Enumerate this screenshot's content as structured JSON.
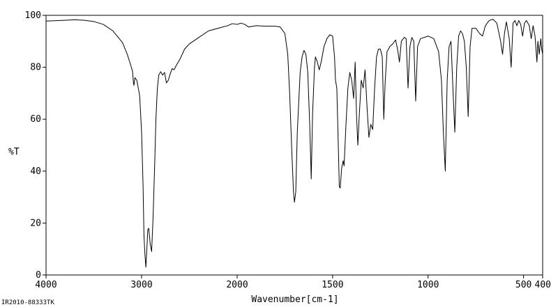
{
  "chart_data": {
    "type": "line",
    "title": "",
    "xlabel": "Wavenumber[cm-1]",
    "ylabel": "%T",
    "xlim": [
      4000,
      400
    ],
    "ylim": [
      0,
      100
    ],
    "x_reversed": true,
    "grid": false,
    "x_ticks": [
      4000,
      3000,
      2000,
      1500,
      1000,
      500,
      400
    ],
    "x_tick_labels": [
      "4000",
      "3000",
      "2000",
      "1500",
      "1000",
      "500",
      "400"
    ],
    "y_ticks": [
      0,
      20,
      40,
      60,
      80,
      100
    ],
    "y_tick_labels": [
      "0",
      "20",
      "40",
      "60",
      "80",
      "100"
    ],
    "series": [
      {
        "color": "#000000",
        "points": [
          [
            4000,
            97.8
          ],
          [
            3800,
            98.1
          ],
          [
            3700,
            98.3
          ],
          [
            3600,
            98.1
          ],
          [
            3500,
            97.6
          ],
          [
            3400,
            96.5
          ],
          [
            3300,
            94.0
          ],
          [
            3200,
            89.5
          ],
          [
            3150,
            85.0
          ],
          [
            3120,
            81.5
          ],
          [
            3095,
            78.5
          ],
          [
            3085,
            74.0
          ],
          [
            3080,
            73.0
          ],
          [
            3070,
            76.0
          ],
          [
            3050,
            75.0
          ],
          [
            3020,
            69.0
          ],
          [
            3000,
            55.0
          ],
          [
            2985,
            35.0
          ],
          [
            2975,
            15.0
          ],
          [
            2965,
            8.0
          ],
          [
            2955,
            3.0
          ],
          [
            2945,
            10.0
          ],
          [
            2935,
            17.5
          ],
          [
            2925,
            18.0
          ],
          [
            2910,
            12.0
          ],
          [
            2895,
            9.0
          ],
          [
            2880,
            22.0
          ],
          [
            2865,
            40.0
          ],
          [
            2850,
            60.0
          ],
          [
            2835,
            72.0
          ],
          [
            2820,
            77.0
          ],
          [
            2800,
            78.3
          ],
          [
            2780,
            77.0
          ],
          [
            2760,
            78.0
          ],
          [
            2740,
            74.0
          ],
          [
            2720,
            75.0
          ],
          [
            2700,
            77.5
          ],
          [
            2680,
            79.5
          ],
          [
            2660,
            79.0
          ],
          [
            2640,
            80.5
          ],
          [
            2600,
            83.0
          ],
          [
            2550,
            87.0
          ],
          [
            2500,
            89.0
          ],
          [
            2400,
            91.5
          ],
          [
            2300,
            94.0
          ],
          [
            2200,
            95.0
          ],
          [
            2100,
            96.0
          ],
          [
            2050,
            96.8
          ],
          [
            2000,
            96.5
          ],
          [
            1980,
            97.0
          ],
          [
            1960,
            96.5
          ],
          [
            1940,
            95.5
          ],
          [
            1900,
            96.0
          ],
          [
            1850,
            95.8
          ],
          [
            1800,
            95.8
          ],
          [
            1775,
            95.5
          ],
          [
            1750,
            93.0
          ],
          [
            1735,
            85.0
          ],
          [
            1725,
            70.0
          ],
          [
            1715,
            50.0
          ],
          [
            1705,
            32.0
          ],
          [
            1700,
            28.0
          ],
          [
            1693,
            32.0
          ],
          [
            1685,
            55.0
          ],
          [
            1670,
            78.0
          ],
          [
            1660,
            84.0
          ],
          [
            1650,
            86.5
          ],
          [
            1640,
            85.0
          ],
          [
            1630,
            78.0
          ],
          [
            1620,
            58.0
          ],
          [
            1612,
            37.0
          ],
          [
            1605,
            62.0
          ],
          [
            1595,
            80.0
          ],
          [
            1590,
            84.0
          ],
          [
            1580,
            82.0
          ],
          [
            1570,
            79.0
          ],
          [
            1560,
            82.0
          ],
          [
            1545,
            88.0
          ],
          [
            1530,
            91.0
          ],
          [
            1515,
            92.5
          ],
          [
            1500,
            92.0
          ],
          [
            1495,
            88.0
          ],
          [
            1490,
            84.0
          ],
          [
            1485,
            75.0
          ],
          [
            1478,
            72.0
          ],
          [
            1472,
            55.0
          ],
          [
            1465,
            34.0
          ],
          [
            1460,
            33.5
          ],
          [
            1453,
            41.0
          ],
          [
            1445,
            44.0
          ],
          [
            1440,
            42.0
          ],
          [
            1430,
            58.0
          ],
          [
            1420,
            72.0
          ],
          [
            1410,
            78.0
          ],
          [
            1400,
            75.0
          ],
          [
            1390,
            68.0
          ],
          [
            1382,
            82.0
          ],
          [
            1375,
            62.0
          ],
          [
            1368,
            50.0
          ],
          [
            1360,
            62.0
          ],
          [
            1350,
            75.0
          ],
          [
            1340,
            72.0
          ],
          [
            1330,
            79.0
          ],
          [
            1320,
            65.0
          ],
          [
            1310,
            53.0
          ],
          [
            1300,
            58.0
          ],
          [
            1290,
            56.0
          ],
          [
            1280,
            72.0
          ],
          [
            1270,
            84.0
          ],
          [
            1260,
            87.0
          ],
          [
            1250,
            87.0
          ],
          [
            1240,
            84.0
          ],
          [
            1232,
            60.0
          ],
          [
            1225,
            74.0
          ],
          [
            1215,
            86.0
          ],
          [
            1200,
            88.0
          ],
          [
            1185,
            89.0
          ],
          [
            1170,
            90.5
          ],
          [
            1160,
            87.0
          ],
          [
            1150,
            82.0
          ],
          [
            1140,
            90.0
          ],
          [
            1125,
            91.5
          ],
          [
            1115,
            91.0
          ],
          [
            1105,
            72.0
          ],
          [
            1095,
            88.0
          ],
          [
            1085,
            91.5
          ],
          [
            1075,
            90.0
          ],
          [
            1065,
            67.0
          ],
          [
            1055,
            88.0
          ],
          [
            1040,
            91.0
          ],
          [
            1000,
            92.0
          ],
          [
            970,
            91.0
          ],
          [
            945,
            86.0
          ],
          [
            930,
            75.0
          ],
          [
            920,
            55.0
          ],
          [
            910,
            40.0
          ],
          [
            900,
            75.0
          ],
          [
            890,
            88.0
          ],
          [
            880,
            90.0
          ],
          [
            870,
            72.0
          ],
          [
            860,
            55.0
          ],
          [
            850,
            80.0
          ],
          [
            840,
            92.0
          ],
          [
            830,
            94.0
          ],
          [
            820,
            93.0
          ],
          [
            810,
            90.0
          ],
          [
            800,
            80.0
          ],
          [
            790,
            61.0
          ],
          [
            780,
            88.0
          ],
          [
            770,
            95.0
          ],
          [
            750,
            95.0
          ],
          [
            730,
            93.0
          ],
          [
            715,
            92.0
          ],
          [
            700,
            96.0
          ],
          [
            680,
            98.0
          ],
          [
            660,
            98.5
          ],
          [
            640,
            97.0
          ],
          [
            620,
            90.0
          ],
          [
            610,
            85.0
          ],
          [
            600,
            93.0
          ],
          [
            590,
            97.5
          ],
          [
            575,
            91.0
          ],
          [
            565,
            80.0
          ],
          [
            555,
            97.0
          ],
          [
            545,
            98.0
          ],
          [
            535,
            96.0
          ],
          [
            525,
            98.0
          ],
          [
            515,
            96.5
          ],
          [
            505,
            92.0
          ],
          [
            495,
            97.0
          ],
          [
            485,
            98.0
          ],
          [
            470,
            96.0
          ],
          [
            460,
            91.0
          ],
          [
            450,
            96.0
          ],
          [
            440,
            92.0
          ],
          [
            430,
            82.0
          ],
          [
            425,
            90.0
          ],
          [
            418,
            85.0
          ],
          [
            410,
            91.0
          ],
          [
            405,
            87.0
          ],
          [
            400,
            85.0
          ]
        ]
      }
    ]
  },
  "footer": {
    "code": "IR2010-88333TK"
  }
}
